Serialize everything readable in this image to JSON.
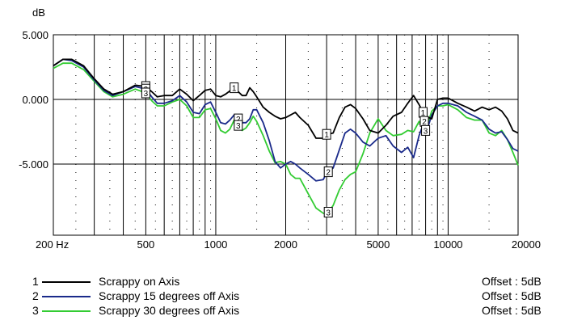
{
  "chart_data": {
    "type": "line",
    "ylabel": "dB",
    "x_scale": "log",
    "xlim": [
      200,
      20000
    ],
    "ylim": [
      -10.5,
      5.0
    ],
    "grid": true,
    "y_ticks": [
      {
        "value": 5,
        "label": "5.000"
      },
      {
        "value": 0,
        "label": "0.000"
      },
      {
        "value": -5,
        "label": "-5.000"
      }
    ],
    "x_ticks": [
      {
        "value": 200,
        "label": "200 Hz"
      },
      {
        "value": 500,
        "label": "500"
      },
      {
        "value": 1000,
        "label": "1000"
      },
      {
        "value": 2000,
        "label": "2000"
      },
      {
        "value": 5000,
        "label": "5000"
      },
      {
        "value": 10000,
        "label": "10000"
      },
      {
        "value": 20000,
        "label": "20000"
      }
    ],
    "series": [
      {
        "marker": "1",
        "name": "Scrappy on Axis",
        "offset": "Offset : 5dB",
        "color": "#000000",
        "marker_x": [
          500,
          1200,
          3000,
          7800
        ],
        "points": [
          [
            200,
            2.6
          ],
          [
            220,
            3.1
          ],
          [
            240,
            3.1
          ],
          [
            270,
            2.6
          ],
          [
            300,
            1.6
          ],
          [
            330,
            0.8
          ],
          [
            360,
            0.4
          ],
          [
            400,
            0.6
          ],
          [
            450,
            1.1
          ],
          [
            500,
            1.0
          ],
          [
            530,
            0.6
          ],
          [
            560,
            0.2
          ],
          [
            600,
            0.3
          ],
          [
            650,
            0.3
          ],
          [
            700,
            0.8
          ],
          [
            750,
            0.4
          ],
          [
            800,
            -0.1
          ],
          [
            850,
            0.3
          ],
          [
            900,
            0.7
          ],
          [
            950,
            0.8
          ],
          [
            1000,
            0.3
          ],
          [
            1050,
            0.2
          ],
          [
            1100,
            0.4
          ],
          [
            1200,
            0.9
          ],
          [
            1300,
            0.3
          ],
          [
            1350,
            0.3
          ],
          [
            1400,
            0.9
          ],
          [
            1450,
            0.6
          ],
          [
            1500,
            0.2
          ],
          [
            1600,
            -0.6
          ],
          [
            1700,
            -1.0
          ],
          [
            1800,
            -1.3
          ],
          [
            1900,
            -1.5
          ],
          [
            2000,
            -1.4
          ],
          [
            2100,
            -1.2
          ],
          [
            2200,
            -1.0
          ],
          [
            2300,
            -1.4
          ],
          [
            2500,
            -2.0
          ],
          [
            2700,
            -3.0
          ],
          [
            2900,
            -3.0
          ],
          [
            3000,
            -2.7
          ],
          [
            3200,
            -2.6
          ],
          [
            3400,
            -1.4
          ],
          [
            3600,
            -0.6
          ],
          [
            3800,
            -0.4
          ],
          [
            4000,
            -0.7
          ],
          [
            4300,
            -1.5
          ],
          [
            4600,
            -2.4
          ],
          [
            5000,
            -2.6
          ],
          [
            5400,
            -2.0
          ],
          [
            5800,
            -1.3
          ],
          [
            6300,
            -1.0
          ],
          [
            6700,
            -0.3
          ],
          [
            7100,
            0.3
          ],
          [
            7500,
            -0.4
          ],
          [
            7800,
            -1.0
          ],
          [
            8000,
            -1.3
          ],
          [
            8500,
            -1.5
          ],
          [
            9000,
            0.0
          ],
          [
            9500,
            0.1
          ],
          [
            10000,
            0.1
          ],
          [
            11000,
            -0.3
          ],
          [
            12000,
            -0.6
          ],
          [
            13000,
            -0.9
          ],
          [
            14000,
            -0.6
          ],
          [
            15000,
            -0.8
          ],
          [
            16000,
            -0.6
          ],
          [
            17000,
            -0.9
          ],
          [
            18000,
            -1.5
          ],
          [
            19000,
            -2.4
          ],
          [
            20000,
            -2.6
          ]
        ]
      },
      {
        "marker": "2",
        "name": "Scrappy 15 degrees off Axis",
        "offset": "Offset : 5dB",
        "color": "#1a2a8a",
        "marker_x": [
          500,
          1250,
          3050,
          7900
        ],
        "points": [
          [
            200,
            2.6
          ],
          [
            220,
            3.1
          ],
          [
            240,
            3.0
          ],
          [
            270,
            2.5
          ],
          [
            300,
            1.5
          ],
          [
            330,
            0.7
          ],
          [
            360,
            0.3
          ],
          [
            400,
            0.6
          ],
          [
            450,
            1.0
          ],
          [
            500,
            0.8
          ],
          [
            530,
            0.2
          ],
          [
            560,
            -0.3
          ],
          [
            600,
            -0.3
          ],
          [
            650,
            -0.1
          ],
          [
            700,
            0.3
          ],
          [
            750,
            -0.2
          ],
          [
            800,
            -1.0
          ],
          [
            850,
            -1.1
          ],
          [
            900,
            -0.4
          ],
          [
            950,
            -0.2
          ],
          [
            1000,
            -1.0
          ],
          [
            1050,
            -1.8
          ],
          [
            1100,
            -1.9
          ],
          [
            1150,
            -1.6
          ],
          [
            1200,
            -1.2
          ],
          [
            1300,
            -1.8
          ],
          [
            1350,
            -1.8
          ],
          [
            1400,
            -1.5
          ],
          [
            1450,
            -0.8
          ],
          [
            1500,
            -0.8
          ],
          [
            1600,
            -1.8
          ],
          [
            1700,
            -3.2
          ],
          [
            1800,
            -4.8
          ],
          [
            1900,
            -5.3
          ],
          [
            2000,
            -5.0
          ],
          [
            2100,
            -4.8
          ],
          [
            2200,
            -5.0
          ],
          [
            2300,
            -5.3
          ],
          [
            2500,
            -5.8
          ],
          [
            2700,
            -6.3
          ],
          [
            2900,
            -6.2
          ],
          [
            3000,
            -5.7
          ],
          [
            3200,
            -5.3
          ],
          [
            3400,
            -3.9
          ],
          [
            3600,
            -2.6
          ],
          [
            3800,
            -2.3
          ],
          [
            4000,
            -2.6
          ],
          [
            4300,
            -3.3
          ],
          [
            4600,
            -3.6
          ],
          [
            5000,
            -3.0
          ],
          [
            5400,
            -2.8
          ],
          [
            5800,
            -3.6
          ],
          [
            6300,
            -4.1
          ],
          [
            6700,
            -3.7
          ],
          [
            7100,
            -4.5
          ],
          [
            7500,
            -2.8
          ],
          [
            7900,
            -1.7
          ],
          [
            8200,
            -2.1
          ],
          [
            8500,
            -1.2
          ],
          [
            9000,
            -0.5
          ],
          [
            9500,
            -0.3
          ],
          [
            10000,
            -0.3
          ],
          [
            11000,
            -0.5
          ],
          [
            12000,
            -1.0
          ],
          [
            13000,
            -1.3
          ],
          [
            14000,
            -1.6
          ],
          [
            15000,
            -2.3
          ],
          [
            16000,
            -2.6
          ],
          [
            17000,
            -2.5
          ],
          [
            18000,
            -3.1
          ],
          [
            19000,
            -3.8
          ],
          [
            20000,
            -4.0
          ]
        ]
      },
      {
        "marker": "3",
        "name": "Scrappy 30 degrees off Axis",
        "offset": "Offset : 5dB",
        "color": "#33cc33",
        "marker_x": [
          500,
          1250,
          3050,
          8000
        ],
        "points": [
          [
            200,
            2.4
          ],
          [
            220,
            2.8
          ],
          [
            240,
            2.8
          ],
          [
            270,
            2.3
          ],
          [
            300,
            1.4
          ],
          [
            330,
            0.6
          ],
          [
            360,
            0.2
          ],
          [
            400,
            0.4
          ],
          [
            450,
            0.8
          ],
          [
            500,
            0.5
          ],
          [
            530,
            -0.1
          ],
          [
            560,
            -0.5
          ],
          [
            600,
            -0.5
          ],
          [
            650,
            -0.2
          ],
          [
            700,
            0.0
          ],
          [
            750,
            -0.5
          ],
          [
            800,
            -1.4
          ],
          [
            850,
            -1.4
          ],
          [
            900,
            -0.8
          ],
          [
            950,
            -0.7
          ],
          [
            1000,
            -1.5
          ],
          [
            1050,
            -2.4
          ],
          [
            1100,
            -2.6
          ],
          [
            1150,
            -2.3
          ],
          [
            1200,
            -1.6
          ],
          [
            1300,
            -2.4
          ],
          [
            1350,
            -2.2
          ],
          [
            1400,
            -1.8
          ],
          [
            1450,
            -1.3
          ],
          [
            1500,
            -1.7
          ],
          [
            1600,
            -2.8
          ],
          [
            1700,
            -4.0
          ],
          [
            1800,
            -4.9
          ],
          [
            1900,
            -4.8
          ],
          [
            2000,
            -5.0
          ],
          [
            2100,
            -5.8
          ],
          [
            2200,
            -6.1
          ],
          [
            2300,
            -6.1
          ],
          [
            2500,
            -7.3
          ],
          [
            2700,
            -8.4
          ],
          [
            2900,
            -8.8
          ],
          [
            3000,
            -8.9
          ],
          [
            3200,
            -8.2
          ],
          [
            3400,
            -7.0
          ],
          [
            3600,
            -6.2
          ],
          [
            3800,
            -5.8
          ],
          [
            4000,
            -5.6
          ],
          [
            4300,
            -4.2
          ],
          [
            4600,
            -2.6
          ],
          [
            5000,
            -1.5
          ],
          [
            5400,
            -2.4
          ],
          [
            5800,
            -2.8
          ],
          [
            6300,
            -2.7
          ],
          [
            6700,
            -2.4
          ],
          [
            7100,
            -2.5
          ],
          [
            7500,
            -1.7
          ],
          [
            8000,
            -2.4
          ],
          [
            8500,
            -0.9
          ],
          [
            9000,
            -0.5
          ],
          [
            9500,
            -0.5
          ],
          [
            10000,
            -0.4
          ],
          [
            11000,
            -0.8
          ],
          [
            12000,
            -1.4
          ],
          [
            13000,
            -1.6
          ],
          [
            14000,
            -1.6
          ],
          [
            15000,
            -2.6
          ],
          [
            16000,
            -2.8
          ],
          [
            17000,
            -2.4
          ],
          [
            18000,
            -3.1
          ],
          [
            19000,
            -4.1
          ],
          [
            20000,
            -5.1
          ]
        ]
      }
    ]
  }
}
